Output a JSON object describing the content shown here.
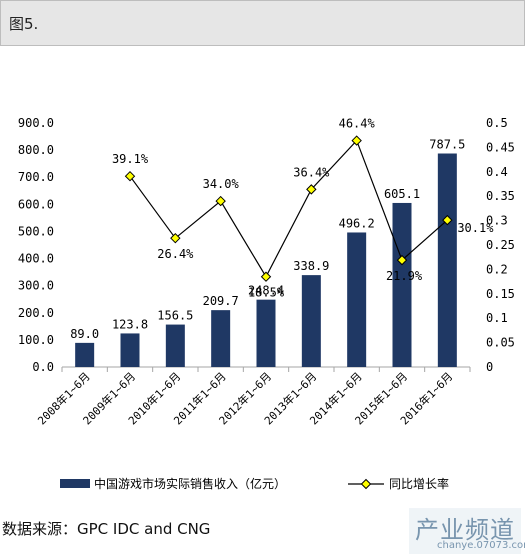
{
  "header": {
    "title": "图5."
  },
  "source": "数据来源：GPC IDC and CNG",
  "watermark": {
    "name": "产业频道",
    "domain": "chanye.07073.com"
  },
  "chart_data": {
    "type": "bar+line",
    "categories": [
      "2008年1~6月",
      "2009年1~6月",
      "2010年1~6月",
      "2011年1~6月",
      "2012年1~6月",
      "2013年1~6月",
      "2014年1~6月",
      "2015年1~6月",
      "2016年1~6月"
    ],
    "bar_series": {
      "name": "中国游戏市场实际销售收入（亿元）",
      "values": [
        89.0,
        123.8,
        156.5,
        209.7,
        248.4,
        338.9,
        496.2,
        605.1,
        787.5
      ],
      "labels": [
        "89.0",
        "123.8",
        "156.5",
        "209.7",
        "248.4",
        "338.9",
        "496.2",
        "605.1",
        "787.5"
      ],
      "color": "#1f3864"
    },
    "line_series": {
      "name": "同比增长率",
      "values": [
        null,
        0.391,
        0.264,
        0.34,
        0.185,
        0.364,
        0.464,
        0.219,
        0.301
      ],
      "labels": [
        "",
        "39.1%",
        "26.4%",
        "34.0%",
        "18.5%",
        "36.4%",
        "46.4%",
        "21.9%",
        "30.1%"
      ],
      "line_color": "#000000",
      "marker_color": "#ffff00"
    },
    "y_left": {
      "min": 0,
      "max": 900,
      "ticks": [
        "0.0",
        "100.0",
        "200.0",
        "300.0",
        "400.0",
        "500.0",
        "600.0",
        "700.0",
        "800.0",
        "900.0"
      ]
    },
    "y_right": {
      "min": 0,
      "max": 0.5,
      "ticks": [
        "0",
        "0.05",
        "0.1",
        "0.15",
        "0.2",
        "0.25",
        "0.3",
        "0.35",
        "0.4",
        "0.45",
        "0.5"
      ]
    },
    "legend": "bottom"
  }
}
